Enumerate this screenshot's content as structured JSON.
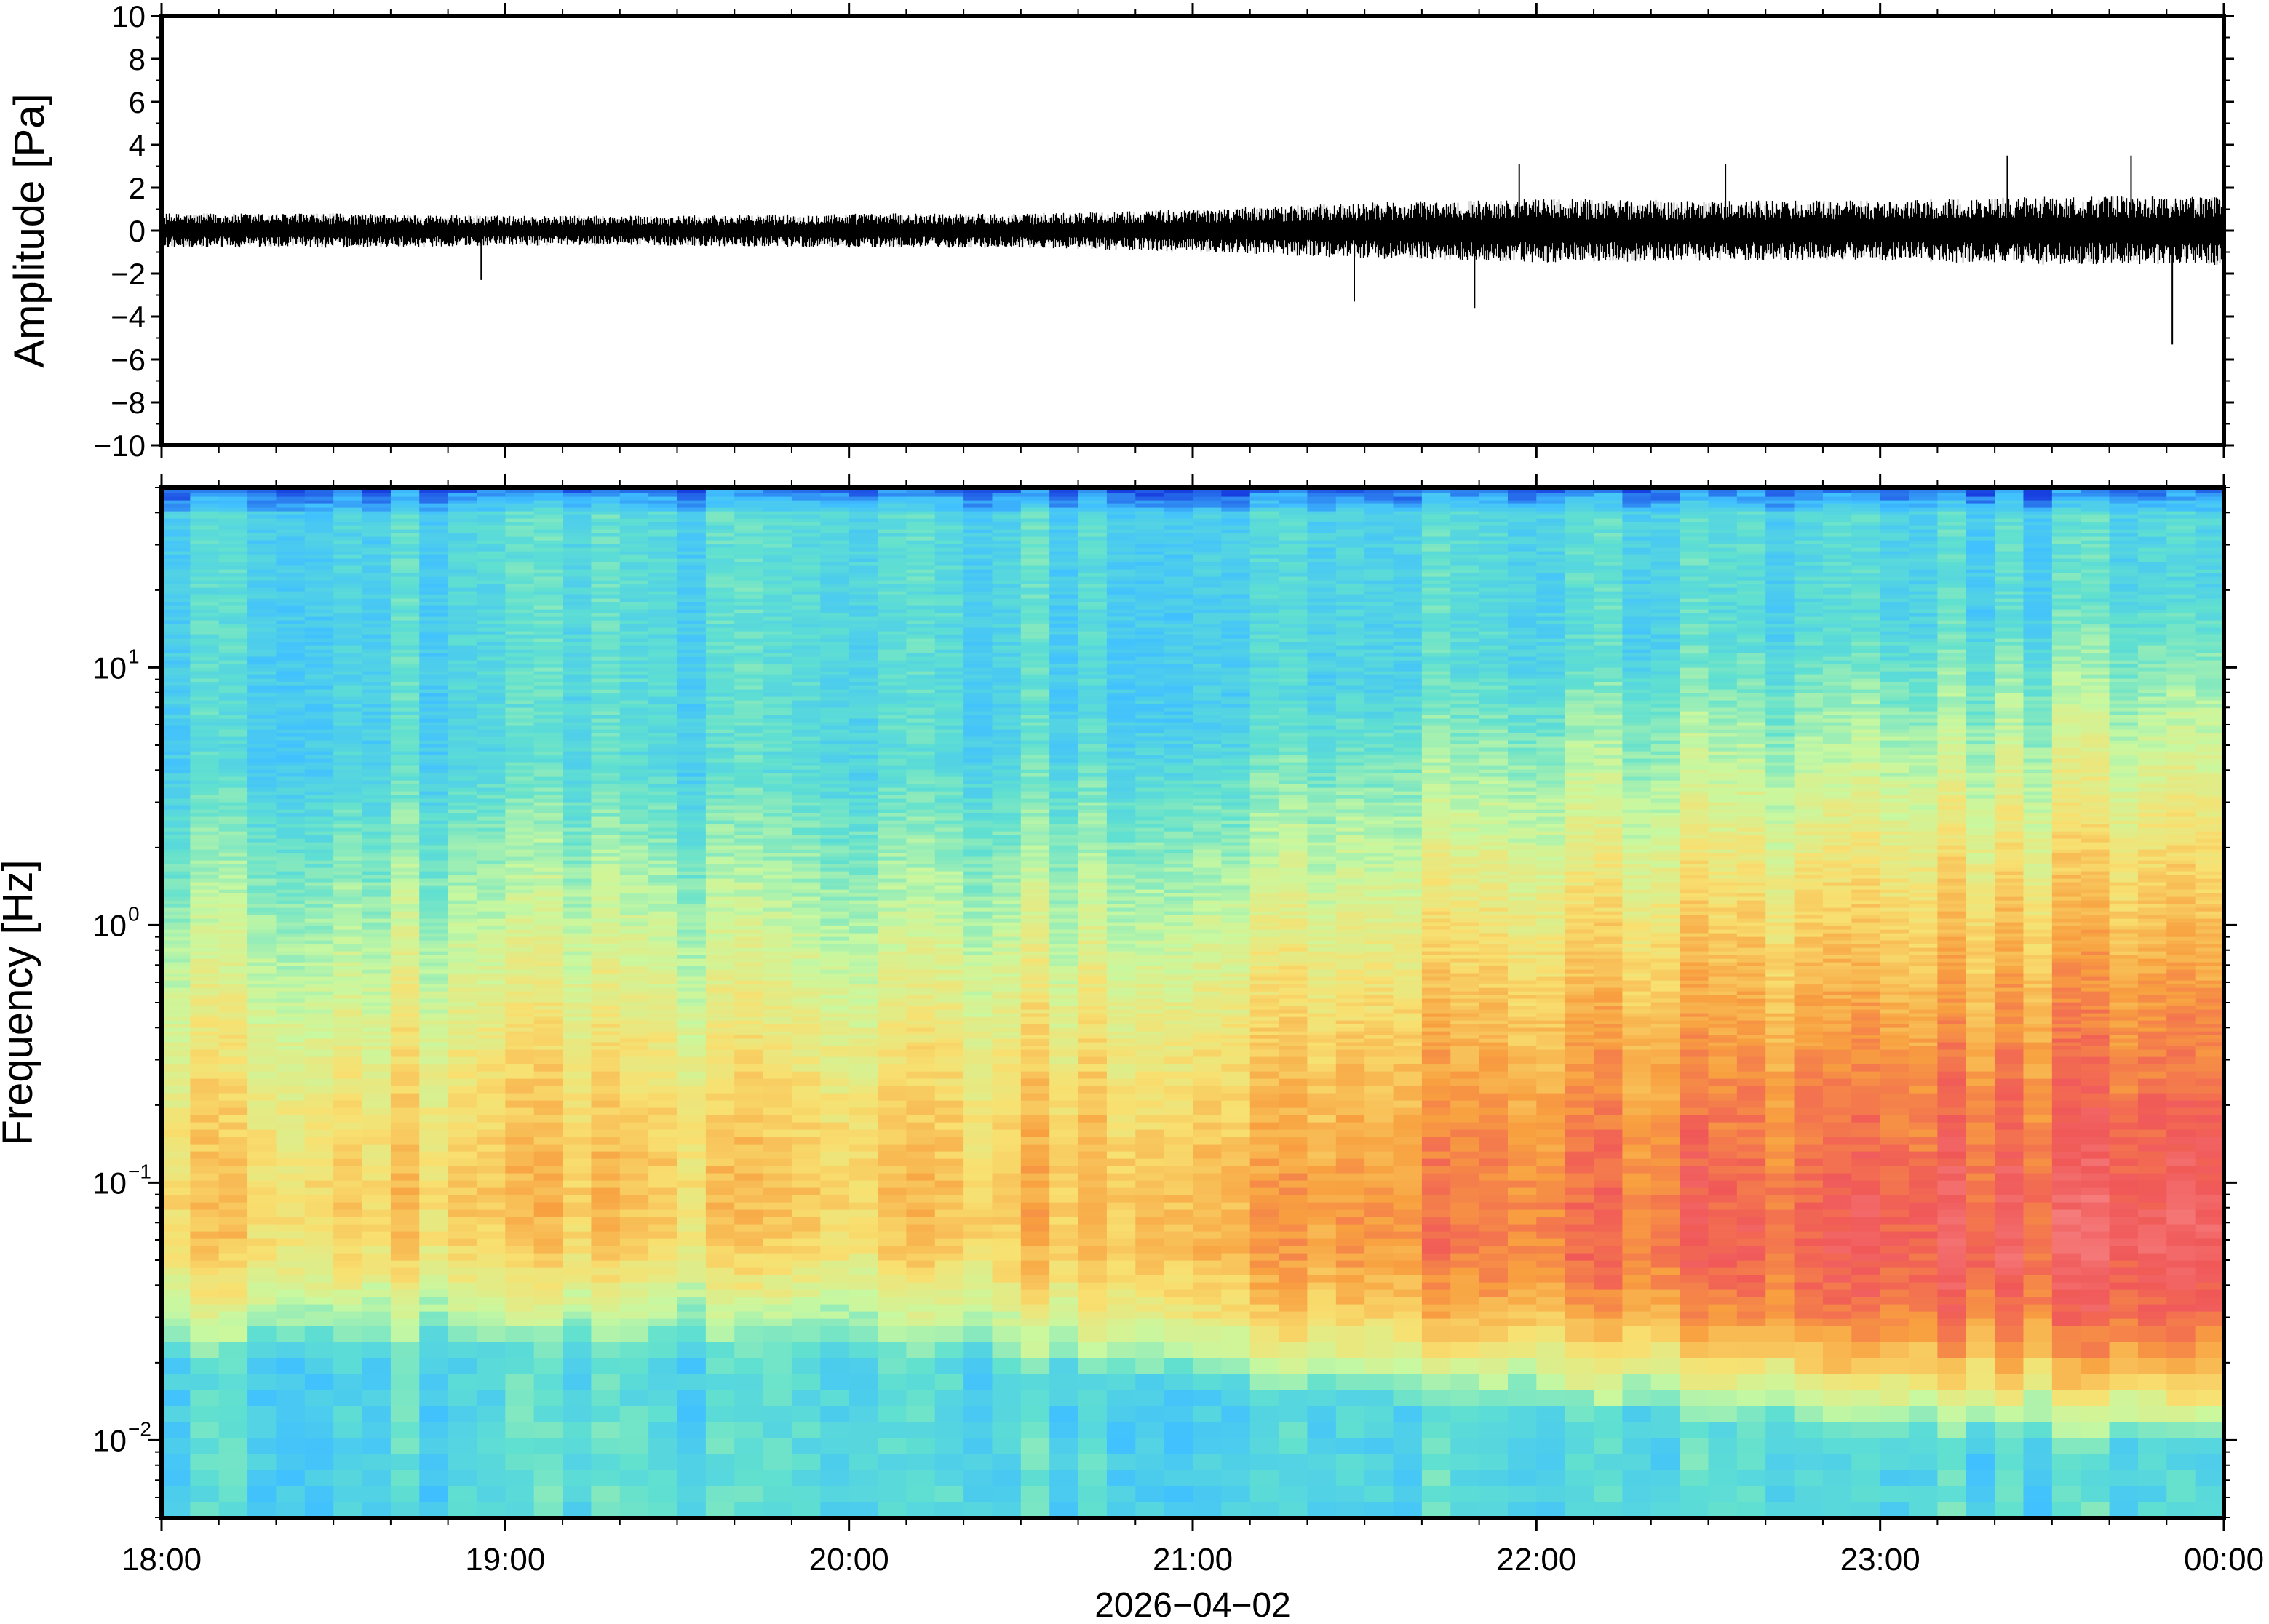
{
  "chart_data": [
    {
      "type": "line",
      "panel": "waveform",
      "ylabel": "Amplitude [Pa]",
      "ylim": [
        -10,
        10
      ],
      "yticks": [
        -10,
        -8,
        -6,
        -4,
        -2,
        0,
        2,
        4,
        6,
        8,
        10
      ],
      "ytick_labels": [
        "−10",
        "−8",
        "−6",
        "−4",
        "−2",
        "0",
        "2",
        "4",
        "6",
        "8",
        "10"
      ],
      "xlim_hours": [
        18,
        24
      ],
      "envelope_hours": [
        18.0,
        18.5,
        19.0,
        19.5,
        20.0,
        20.5,
        21.0,
        21.5,
        22.0,
        22.5,
        23.0,
        23.5,
        24.0
      ],
      "envelope_amplitude": [
        0.8,
        0.8,
        0.7,
        0.7,
        0.8,
        0.8,
        1.0,
        1.3,
        1.5,
        1.4,
        1.4,
        1.6,
        1.6
      ],
      "spikes": [
        {
          "hour": 18.93,
          "value": -2.3
        },
        {
          "hour": 21.47,
          "value": -3.3
        },
        {
          "hour": 21.82,
          "value": -3.6
        },
        {
          "hour": 21.95,
          "value": 3.1
        },
        {
          "hour": 22.55,
          "value": 3.1
        },
        {
          "hour": 23.37,
          "value": 3.5
        },
        {
          "hour": 23.73,
          "value": 3.5
        },
        {
          "hour": 23.85,
          "value": -5.3
        }
      ],
      "grid": false
    },
    {
      "type": "heatmap",
      "panel": "spectrogram",
      "ylabel": "Frequency [Hz]",
      "yscale": "log",
      "ylim": [
        0.005,
        50
      ],
      "yticks": [
        0.01,
        0.1,
        1,
        10
      ],
      "ytick_base": "10",
      "ytick_exponents": [
        "−2",
        "−1",
        "0",
        "1"
      ],
      "xlim_hours": [
        18,
        24
      ],
      "xticks_hours": [
        18,
        19,
        20,
        21,
        22,
        23,
        24
      ],
      "xtick_labels": [
        "18:00",
        "19:00",
        "20:00",
        "21:00",
        "22:00",
        "23:00",
        "00:00"
      ],
      "xlabel": "2026−04−02",
      "colormap": [
        "#1840e0",
        "#40c0ff",
        "#60e0d0",
        "#c8f8a0",
        "#f8e070",
        "#f8a040",
        "#f05858",
        "#f88888"
      ],
      "time_hours": [
        18.0,
        19.0,
        20.0,
        21.0,
        22.0,
        23.0,
        24.0
      ],
      "peak_frequency_hz": [
        0.08,
        0.09,
        0.09,
        0.07,
        0.07,
        0.06,
        0.06
      ],
      "peak_level": [
        0.62,
        0.62,
        0.6,
        0.7,
        0.78,
        0.85,
        0.9
      ],
      "grid": false
    }
  ]
}
